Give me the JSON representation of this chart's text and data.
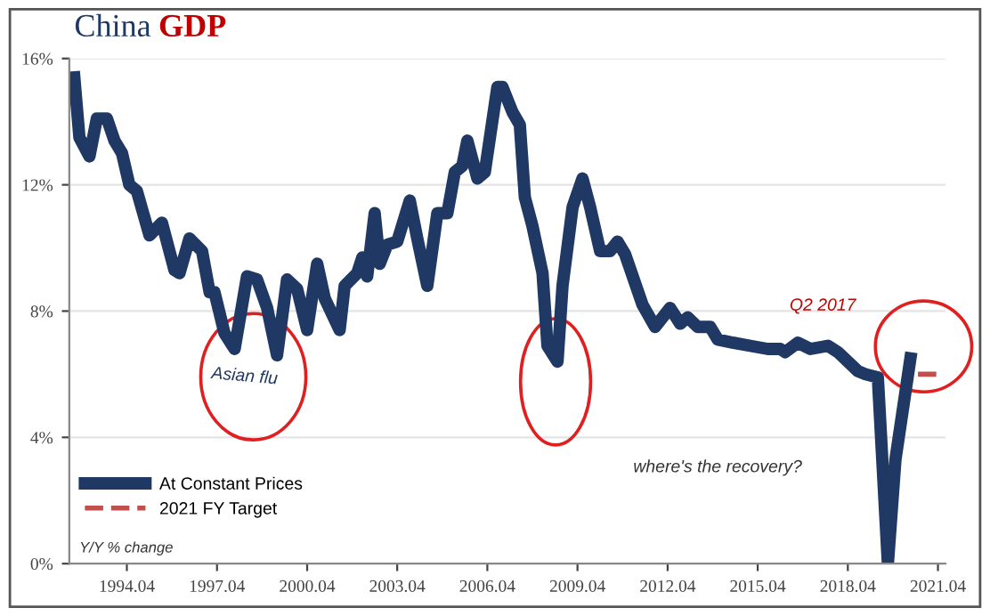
{
  "chart_data": {
    "type": "line",
    "title": "China GDP",
    "xlim": [
      "1992-05",
      "2021-07"
    ],
    "ylim": [
      0,
      16
    ],
    "xticks": [
      {
        "value": "1994-04",
        "label": "1994.04"
      },
      {
        "value": "1997-04",
        "label": "1997.04"
      },
      {
        "value": "2000-04",
        "label": "2000.04"
      },
      {
        "value": "2003-04",
        "label": "2003.04"
      },
      {
        "value": "2006-04",
        "label": "2006.04"
      },
      {
        "value": "2009-04",
        "label": "2009.04"
      },
      {
        "value": "2012-04",
        "label": "2012.04"
      },
      {
        "value": "2015-04",
        "label": "2015.04"
      },
      {
        "value": "2018-04",
        "label": "2018.04"
      },
      {
        "value": "2021-04",
        "label": "2021.04"
      }
    ],
    "yticks": [
      {
        "value": 0,
        "label": "0%"
      },
      {
        "value": 4,
        "label": "4%"
      },
      {
        "value": 8,
        "label": "8%"
      },
      {
        "value": 12,
        "label": "12%"
      },
      {
        "value": 16,
        "label": "16%"
      }
    ],
    "grid": "y",
    "legend": "bottom left",
    "marker": "none",
    "series": [
      {
        "name": "At Constant Prices",
        "color": "#1f3864",
        "line_style": "solid",
        "x": [
          "1992-07",
          "1992-09",
          "1993-01",
          "1993-04",
          "1993-08",
          "1993-11",
          "1994-02",
          "1994-05",
          "1994-08",
          "1995-01",
          "1995-06",
          "1995-11",
          "1996-01",
          "1996-05",
          "1996-10",
          "1997-01",
          "1997-03",
          "1997-07",
          "1997-11",
          "1998-04",
          "1998-08",
          "1998-12",
          "1999-04",
          "1999-08",
          "1999-12",
          "2000-04",
          "2000-08",
          "2000-11",
          "2001-05",
          "2001-07",
          "2001-12",
          "2002-02",
          "2002-04",
          "2002-07",
          "2002-09",
          "2002-12",
          "2003-04",
          "2003-09",
          "2003-12",
          "2004-04",
          "2004-08",
          "2004-12",
          "2005-03",
          "2005-06",
          "2005-08",
          "2005-12",
          "2006-03",
          "2006-08",
          "2006-10",
          "2007-02",
          "2007-05",
          "2007-07",
          "2007-10",
          "2008-02",
          "2008-04",
          "2008-08",
          "2008-10",
          "2009-02",
          "2009-06",
          "2009-09",
          "2010-01",
          "2010-05",
          "2010-08",
          "2010-11",
          "2011-06",
          "2011-11",
          "2012-05",
          "2012-09",
          "2012-12",
          "2013-04",
          "2013-09",
          "2013-12",
          "2014-06",
          "2015-01",
          "2015-08",
          "2016-01",
          "2016-03",
          "2016-08",
          "2017-01",
          "2017-08",
          "2017-12",
          "2018-08",
          "2018-11",
          "2019-04",
          "2019-08",
          "2019-11",
          "2020-05"
        ],
        "values": [
          15.4,
          13.5,
          12.9,
          14.1,
          14.1,
          13.4,
          13.0,
          12.0,
          11.8,
          10.4,
          10.8,
          9.3,
          9.2,
          10.3,
          9.9,
          8.6,
          8.6,
          7.3,
          6.8,
          9.1,
          9.0,
          8.1,
          6.6,
          9.0,
          8.7,
          7.4,
          9.5,
          8.4,
          7.4,
          8.8,
          9.2,
          9.7,
          9.1,
          11.1,
          9.5,
          10.1,
          10.2,
          11.5,
          10.3,
          8.8,
          11.1,
          11.1,
          12.4,
          12.6,
          13.4,
          12.2,
          12.4,
          15.1,
          15.1,
          14.3,
          13.9,
          11.6,
          10.7,
          9.2,
          6.9,
          6.4,
          8.8,
          11.3,
          12.2,
          11.3,
          9.9,
          9.9,
          10.2,
          9.8,
          8.2,
          7.5,
          8.1,
          7.6,
          7.8,
          7.5,
          7.5,
          7.1,
          7.0,
          6.9,
          6.8,
          6.8,
          6.7,
          7.0,
          6.8,
          6.9,
          6.7,
          6.1,
          6.0,
          5.9,
          0,
          3.3,
          6.5
        ]
      },
      {
        "name": "2021 FY Target",
        "color": "#c0504d",
        "line_style": "dashed",
        "x": [
          "2020-08",
          "2021-05"
        ],
        "values": [
          6.0,
          6.0
        ]
      }
    ],
    "annotations": [
      "Asian flu",
      "Q2 2017",
      "where's the recovery?",
      "Y/Y % change"
    ]
  }
}
